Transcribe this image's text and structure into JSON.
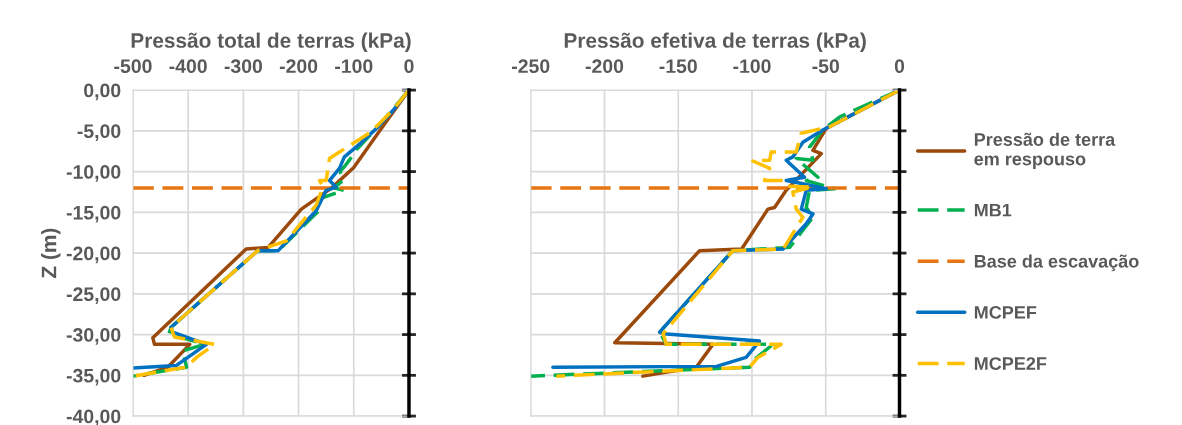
{
  "chart_data": [
    {
      "type": "line",
      "xlabel": "Pressão total de terras (kPa)",
      "ylabel": "Z (m)",
      "xlim": [
        -500,
        0
      ],
      "xticks": [
        -500,
        -400,
        -300,
        -200,
        -100,
        0
      ],
      "ylim": [
        -40,
        0
      ],
      "yticks": [
        {
          "value": 0,
          "label": "0,00"
        },
        {
          "value": -5,
          "label": "-5,00"
        },
        {
          "value": -10,
          "label": "-10,00"
        },
        {
          "value": -15,
          "label": "-15,00"
        },
        {
          "value": -20,
          "label": "-20,00"
        },
        {
          "value": -25,
          "label": "-25,00"
        },
        {
          "value": -30,
          "label": "-30,00"
        },
        {
          "value": -35,
          "label": "-35,00"
        },
        {
          "value": -40,
          "label": "-40,00"
        }
      ],
      "grid": true,
      "legend": false,
      "series": [
        {
          "color": "#9c4a0c",
          "line_style": "solid",
          "x": [
            0,
            -53,
            -100,
            -140,
            -195,
            -255,
            -295,
            -464,
            -461,
            -397,
            -437,
            -480
          ],
          "values": [
            0,
            -5,
            -9.5,
            -12,
            -14.6,
            -19.3,
            -19.5,
            -30.4,
            -31.2,
            -31.2,
            -34,
            -35
          ]
        },
        {
          "color": "#00b050",
          "line_style": "dashed",
          "x": [
            0,
            -30,
            -55,
            -95,
            -107,
            -117,
            -125,
            -118,
            -136,
            -118,
            -160,
            -166,
            -237,
            -274,
            -431,
            -435,
            -370,
            -410,
            -403,
            -500
          ],
          "values": [
            0,
            -2.4,
            -4.4,
            -7.3,
            -8.5,
            -9.4,
            -10,
            -11,
            -12,
            -12.3,
            -13.3,
            -15,
            -19.7,
            -19.7,
            -29.1,
            -29.9,
            -31.2,
            -32,
            -34,
            -35.1
          ]
        },
        {
          "color": "#e87511",
          "line_style": "dashed",
          "x": [
            -500,
            0
          ],
          "values": [
            -12,
            -12
          ]
        },
        {
          "color": "#0070c0",
          "line_style": "solid",
          "x": [
            0,
            -29,
            -59,
            -89,
            -117,
            -126,
            -144,
            -132,
            -150,
            -168,
            -237,
            -274,
            -431,
            -428,
            -367,
            -422,
            -500
          ],
          "values": [
            0,
            -2.5,
            -4.7,
            -6.6,
            -8.2,
            -9.6,
            -11.1,
            -11.9,
            -12.3,
            -14.8,
            -19.7,
            -19.7,
            -29.1,
            -29.7,
            -31.2,
            -33.8,
            -34.1
          ]
        },
        {
          "color": "#ffc000",
          "line_style": "dashed",
          "x": [
            0,
            -30,
            -70,
            -126,
            -144,
            -150,
            -162,
            -156,
            -168,
            -222,
            -274,
            -431,
            -425,
            -352,
            -385,
            -403,
            -500
          ],
          "values": [
            0,
            -2.5,
            -5.2,
            -7.6,
            -8.4,
            -11.1,
            -11.1,
            -11.9,
            -14.1,
            -18.5,
            -19.7,
            -29.1,
            -30.3,
            -31.2,
            -32.8,
            -34,
            -35.1
          ]
        }
      ]
    },
    {
      "type": "line",
      "xlabel": "Pressão efetiva de terras (kPa)",
      "xlim": [
        -250,
        0
      ],
      "xticks": [
        -250,
        -200,
        -150,
        -100,
        -50,
        0
      ],
      "ylim": [
        -40,
        0
      ],
      "tick_labels": "x",
      "grid": true,
      "legend": "right",
      "yticks": [
        {
          "value": 0,
          "label": null
        },
        {
          "value": -5,
          "label": null
        },
        {
          "value": -10,
          "label": null
        },
        {
          "value": -15,
          "label": null
        },
        {
          "value": -20,
          "label": null
        },
        {
          "value": -25,
          "label": null
        },
        {
          "value": -30,
          "label": null
        },
        {
          "value": -35,
          "label": null
        },
        {
          "value": -40,
          "label": null
        }
      ],
      "series": [
        {
          "name": "Pressão de terra\nem respouso",
          "color": "#9c4a0c",
          "line_style": "solid",
          "x": [
            0,
            -49.7,
            -58.7,
            -53,
            -76.8,
            -84.7,
            -89.2,
            -107,
            -135.5,
            -193,
            -158,
            -126.5,
            -137.8,
            -174
          ],
          "values": [
            0,
            -4.7,
            -7.4,
            -7.8,
            -12.3,
            -14.4,
            -14.6,
            -19.5,
            -19.7,
            -31,
            -31.1,
            -31.2,
            -34,
            -35.1
          ]
        },
        {
          "name": "MB1",
          "color": "#00b050",
          "line_style": "dashed",
          "x": [
            0,
            -40.7,
            -52,
            -61,
            -58.7,
            -70,
            -55.3,
            -63.2,
            -44,
            -61,
            -63.2,
            -58.7,
            -74.5,
            -113,
            -162.6,
            -158,
            -85.8,
            -99.4,
            -101.6,
            -250
          ],
          "values": [
            0,
            -3.3,
            -4.9,
            -7,
            -8.6,
            -8.4,
            -10.7,
            -11.1,
            -12.1,
            -12.3,
            -14.4,
            -15.6,
            -19.3,
            -19.7,
            -29.7,
            -31.2,
            -31.2,
            -33.2,
            -34,
            -35.1
          ]
        },
        {
          "name": "Base da escavação",
          "color": "#e87511",
          "line_style": "dashed",
          "x": [
            -250,
            0
          ],
          "values": [
            -12,
            -12
          ]
        },
        {
          "name": "MCPEF",
          "color": "#0070c0",
          "line_style": "solid",
          "x": [
            0,
            -52,
            -65.5,
            -72.3,
            -76.8,
            -64.4,
            -76.8,
            -65.5,
            -49.7,
            -63.2,
            -66.6,
            -58.7,
            -63.2,
            -79,
            -113,
            -162.6,
            -160.3,
            -94.9,
            -104,
            -124,
            -235
          ],
          "values": [
            0,
            -4.9,
            -6.4,
            -8.2,
            -8.6,
            -10.7,
            -11.1,
            -11.5,
            -12.1,
            -12.3,
            -14.6,
            -15.2,
            -16.4,
            -19.5,
            -19.7,
            -29.7,
            -29.9,
            -30.8,
            -32.8,
            -33.9,
            -34
          ]
        },
        {
          "name": "MCPE2F",
          "color": "#ffc000",
          "line_style": "dashed",
          "x": [
            0,
            -47.4,
            -66.6,
            -70,
            -87,
            -88,
            -99.4,
            -88,
            -91.5,
            -79,
            -76.8,
            -58.7,
            -72.3,
            -70,
            -65.5,
            -76.8,
            -79,
            -113,
            -160.3,
            -158,
            -80.2,
            -96,
            -101.6,
            -232.6
          ],
          "values": [
            0,
            -4.5,
            -5.3,
            -7.6,
            -7.6,
            -8.6,
            -8.7,
            -9.6,
            -11.1,
            -11.1,
            -11.8,
            -11.9,
            -12.5,
            -14.6,
            -15.6,
            -18.9,
            -19.5,
            -19.7,
            -29.9,
            -31.2,
            -31.2,
            -32.8,
            -34,
            -35.1
          ]
        }
      ]
    }
  ]
}
